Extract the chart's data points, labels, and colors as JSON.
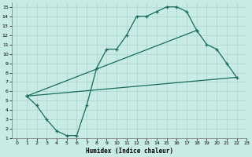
{
  "bg_color": "#c8ebe5",
  "grid_color": "#a8d5cc",
  "line_color": "#1a6b5a",
  "xlabel": "Humidex (Indice chaleur)",
  "xlim": [
    -0.5,
    23
  ],
  "ylim": [
    1,
    15.5
  ],
  "xticks": [
    0,
    1,
    2,
    3,
    4,
    5,
    6,
    7,
    8,
    9,
    10,
    11,
    12,
    13,
    14,
    15,
    16,
    17,
    18,
    19,
    20,
    21,
    22,
    23
  ],
  "yticks": [
    1,
    2,
    3,
    4,
    5,
    6,
    7,
    8,
    9,
    10,
    11,
    12,
    13,
    14,
    15
  ],
  "curve1_x": [
    1,
    2,
    3,
    4,
    5,
    6,
    7,
    8,
    9,
    10,
    11,
    12,
    13,
    14,
    15,
    16,
    17,
    18
  ],
  "curve1_y": [
    5.5,
    4.5,
    3.0,
    1.8,
    1.3,
    1.3,
    4.5,
    8.5,
    10.5,
    10.5,
    12.0,
    14.0,
    14.0,
    14.5,
    15.0,
    15.0,
    14.5,
    12.5
  ],
  "curve2_x": [
    1,
    18,
    19,
    20,
    21,
    22
  ],
  "curve2_y": [
    5.5,
    12.5,
    11.0,
    10.5,
    9.0,
    7.5
  ],
  "curve3_x": [
    1,
    22
  ],
  "curve3_y": [
    5.5,
    7.5
  ]
}
